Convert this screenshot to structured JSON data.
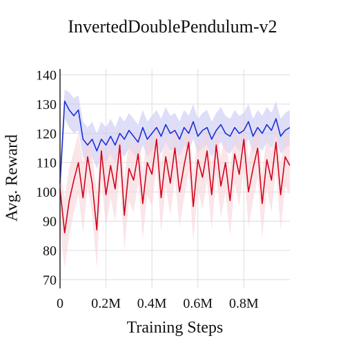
{
  "chart_data": {
    "type": "line",
    "title": "InvertedDoublePendulum-v2",
    "xlabel": "Training Steps",
    "ylabel": "Avg. Reward",
    "xlim": [
      0,
      1000000
    ],
    "ylim": [
      67,
      142
    ],
    "grid": true,
    "x_ticks": [
      0,
      200000,
      400000,
      600000,
      800000
    ],
    "x_tick_labels": [
      "0",
      "0.2M",
      "0.4M",
      "0.6M",
      "0.8M"
    ],
    "y_ticks": [
      70,
      80,
      90,
      100,
      110,
      120,
      130,
      140
    ],
    "y_tick_labels": [
      "70",
      "80",
      "90",
      "100",
      "110",
      "120",
      "130",
      "140"
    ],
    "series": [
      {
        "color": "#1a2fd4",
        "band_color": "#c8c8f5",
        "x": [
          0,
          20000,
          40000,
          60000,
          80000,
          100000,
          120000,
          140000,
          160000,
          180000,
          200000,
          220000,
          240000,
          260000,
          280000,
          300000,
          320000,
          340000,
          360000,
          380000,
          400000,
          420000,
          440000,
          460000,
          480000,
          500000,
          520000,
          540000,
          560000,
          580000,
          600000,
          620000,
          640000,
          660000,
          680000,
          700000,
          720000,
          740000,
          760000,
          780000,
          800000,
          820000,
          840000,
          860000,
          880000,
          900000,
          920000,
          940000,
          960000,
          980000,
          1000000
        ],
        "values": [
          103,
          131,
          128,
          126,
          128,
          118,
          116,
          118,
          114,
          118,
          116,
          119,
          116,
          120,
          118,
          121,
          119,
          117,
          122,
          118,
          120,
          122,
          119,
          123,
          120,
          121,
          118,
          122,
          120,
          124,
          119,
          121,
          122,
          118,
          121,
          123,
          120,
          119,
          122,
          120,
          121,
          124,
          119,
          122,
          120,
          123,
          121,
          125,
          119,
          121,
          122
        ],
        "upper": [
          108,
          135,
          134,
          132,
          133,
          124,
          122,
          124,
          120,
          124,
          122,
          125,
          122,
          126,
          124,
          127,
          125,
          123,
          128,
          124,
          126,
          128,
          125,
          129,
          126,
          127,
          124,
          128,
          126,
          130,
          125,
          127,
          128,
          124,
          127,
          129,
          126,
          125,
          128,
          126,
          127,
          130,
          125,
          128,
          126,
          129,
          127,
          131,
          125,
          127,
          128
        ],
        "lower": [
          96,
          125,
          122,
          120,
          121,
          112,
          110,
          112,
          108,
          112,
          110,
          113,
          110,
          114,
          112,
          115,
          113,
          111,
          116,
          112,
          114,
          116,
          113,
          117,
          114,
          115,
          112,
          116,
          114,
          118,
          113,
          115,
          116,
          112,
          115,
          117,
          114,
          113,
          116,
          114,
          115,
          118,
          113,
          116,
          114,
          117,
          115,
          119,
          113,
          115,
          116
        ]
      },
      {
        "color": "#d0021b",
        "band_color": "#f6d3d8",
        "x": [
          0,
          20000,
          40000,
          60000,
          80000,
          100000,
          120000,
          140000,
          160000,
          180000,
          200000,
          220000,
          240000,
          260000,
          280000,
          300000,
          320000,
          340000,
          360000,
          380000,
          400000,
          420000,
          440000,
          460000,
          480000,
          500000,
          520000,
          540000,
          560000,
          580000,
          600000,
          620000,
          640000,
          660000,
          680000,
          700000,
          720000,
          740000,
          760000,
          780000,
          800000,
          820000,
          840000,
          860000,
          880000,
          900000,
          920000,
          940000,
          960000,
          980000,
          1000000
        ],
        "values": [
          101,
          86,
          97,
          104,
          110,
          98,
          112,
          103,
          87,
          114,
          99,
          109,
          101,
          116,
          92,
          108,
          104,
          113,
          96,
          110,
          106,
          118,
          98,
          112,
          103,
          115,
          100,
          109,
          117,
          95,
          111,
          105,
          114,
          99,
          116,
          102,
          110,
          97,
          113,
          106,
          118,
          100,
          108,
          115,
          96,
          111,
          104,
          117,
          99,
          112,
          109
        ],
        "upper": [
          108,
          98,
          108,
          114,
          120,
          110,
          121,
          113,
          100,
          122,
          110,
          119,
          111,
          124,
          104,
          118,
          114,
          122,
          107,
          120,
          116,
          126,
          109,
          121,
          113,
          124,
          111,
          119,
          126,
          106,
          120,
          115,
          123,
          109,
          125,
          112,
          119,
          107,
          122,
          116,
          126,
          111,
          118,
          124,
          106,
          120,
          114,
          125,
          109,
          121,
          118
        ],
        "lower": [
          88,
          74,
          85,
          93,
          99,
          86,
          102,
          92,
          74,
          104,
          88,
          98,
          90,
          106,
          80,
          97,
          93,
          103,
          84,
          99,
          95,
          109,
          86,
          102,
          92,
          105,
          88,
          98,
          107,
          83,
          101,
          94,
          104,
          87,
          106,
          91,
          100,
          85,
          103,
          95,
          109,
          88,
          97,
          105,
          84,
          101,
          93,
          108,
          87,
          102,
          99
        ]
      }
    ]
  }
}
